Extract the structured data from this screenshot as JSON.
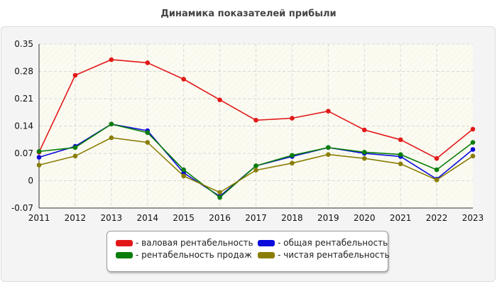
{
  "chart_data": {
    "type": "line",
    "title": "Динамика показателей прибыли",
    "x": [
      "2011",
      "2012",
      "2013",
      "2014",
      "2015",
      "2016",
      "2017",
      "2018",
      "2019",
      "2020",
      "2021",
      "2022",
      "2023"
    ],
    "ylim": [
      -0.07,
      0.35
    ],
    "yticks": [
      "0.35",
      "0.28",
      "0.21",
      "0.14",
      "0.07",
      "0",
      "-0.07"
    ],
    "ytick_values": [
      0.35,
      0.28,
      0.21,
      0.14,
      0.07,
      0,
      -0.07
    ],
    "grid": true,
    "legend_position": "bottom",
    "series": [
      {
        "name": "- валовая рентабельность",
        "color": "#e21818",
        "values": [
          0.073,
          0.27,
          0.31,
          0.302,
          0.26,
          0.207,
          0.155,
          0.16,
          0.178,
          0.13,
          0.105,
          0.057,
          0.132
        ]
      },
      {
        "name": "- общая рентабельность",
        "color": "#0b0bdc",
        "values": [
          0.06,
          0.088,
          0.145,
          0.128,
          0.02,
          -0.04,
          0.038,
          0.062,
          0.085,
          0.07,
          0.062,
          0.004,
          0.08
        ]
      },
      {
        "name": "- рентабельность продаж",
        "color": "#0b7d0b",
        "values": [
          0.075,
          0.085,
          0.145,
          0.123,
          0.028,
          -0.043,
          0.038,
          0.065,
          0.085,
          0.073,
          0.067,
          0.028,
          0.098
        ]
      },
      {
        "name": "- чистая рентабельность",
        "color": "#8a7d05",
        "values": [
          0.04,
          0.063,
          0.11,
          0.098,
          0.012,
          -0.03,
          0.027,
          0.045,
          0.067,
          0.057,
          0.043,
          0.002,
          0.063
        ]
      }
    ]
  }
}
